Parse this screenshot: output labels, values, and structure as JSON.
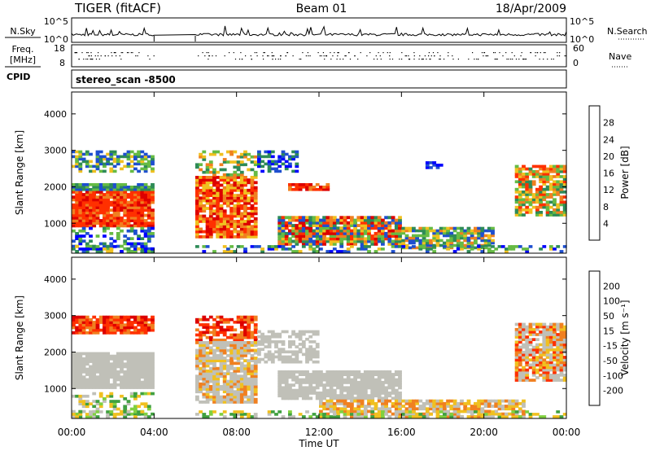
{
  "header": {
    "radar": "TIGER (fitACF)",
    "beam": "Beam 01",
    "date": "18/Apr/2009"
  },
  "top_panels": {
    "nsky_label": "N.Sky",
    "nsky_ticks": [
      "10^5",
      "10^0"
    ],
    "nsearch_label": "N.Search",
    "nsearch_ticks": [
      "10^5",
      "10^0"
    ],
    "freq_label": [
      "Freq.",
      "[MHz]"
    ],
    "freq_ticks": [
      "18",
      "8"
    ],
    "nave_label": "Nave",
    "nave_ticks": [
      "60",
      "0"
    ],
    "cpid_label": "CPID",
    "cpid_text": "stereo_scan -8500"
  },
  "chart_data": [
    {
      "type": "heatmap",
      "name": "power",
      "ylabel": "Slant Range [km]",
      "y_ticks": [
        1000,
        2000,
        3000,
        4000
      ],
      "ylim": [
        180,
        4600
      ],
      "xlim_hours": [
        0,
        24
      ],
      "data_gap_hours": [
        4.0,
        6.0
      ],
      "colorbar": {
        "label": "Power [dB]",
        "ticks": [
          "4",
          "8",
          "12",
          "16",
          "20",
          "24",
          "28"
        ],
        "colors": [
          "#0000ff",
          "#1e4fd0",
          "#2e8b57",
          "#66bb44",
          "#f0c020",
          "#f08020",
          "#ff3000",
          "#dd0000"
        ]
      }
    },
    {
      "type": "heatmap",
      "name": "velocity",
      "ylabel": "Slant Range [km]",
      "y_ticks": [
        1000,
        2000,
        3000,
        4000
      ],
      "ylim": [
        180,
        4600
      ],
      "xlim_hours": [
        0,
        24
      ],
      "data_gap_hours": [
        4.0,
        6.0
      ],
      "colorbar": {
        "label": "Velocity [m s⁻¹]",
        "ticks": [
          "200",
          "100",
          "50",
          "15",
          "-15",
          "-50",
          "-100",
          "-200"
        ],
        "colors": [
          "#1030c0",
          "#3060d0",
          "#40a040",
          "#80d040",
          "#c0c0b8",
          "#f0c020",
          "#f08020",
          "#ff3000",
          "#dd0000"
        ]
      }
    }
  ],
  "x_axis": {
    "ticks": [
      "00:00",
      "04:00",
      "08:00",
      "12:00",
      "16:00",
      "20:00",
      "00:00"
    ],
    "label": "Time UT"
  }
}
